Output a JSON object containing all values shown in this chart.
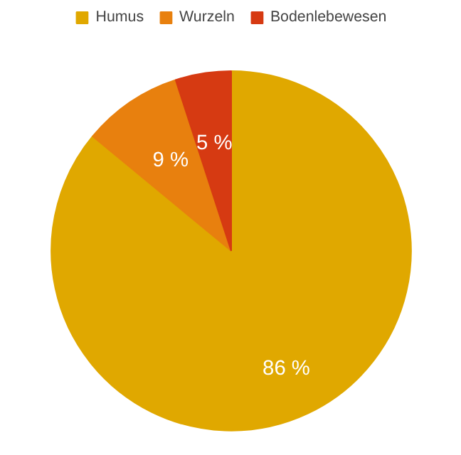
{
  "chart_data": {
    "type": "pie",
    "categories": [
      "Humus",
      "Wurzeln",
      "Bodenlebewesen"
    ],
    "values": [
      86,
      9,
      5
    ],
    "colors": [
      "#e0a800",
      "#e8800e",
      "#d63a12"
    ],
    "value_labels": [
      "86 %",
      "9 %",
      "5 %"
    ],
    "legend": "top"
  }
}
